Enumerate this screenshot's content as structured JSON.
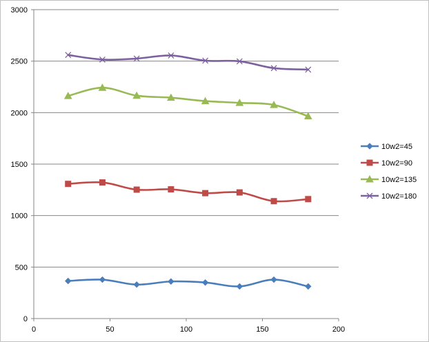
{
  "chart_data": {
    "type": "line",
    "title": "",
    "xlabel": "",
    "ylabel": "",
    "xlim": [
      0,
      200
    ],
    "ylim": [
      0,
      3000
    ],
    "x_ticks": [
      "0",
      "50",
      "100",
      "150",
      "200"
    ],
    "y_ticks": [
      "0",
      "500",
      "1000",
      "1500",
      "2000",
      "2500",
      "3000"
    ],
    "grid": "horizontal",
    "legend_position": "right",
    "x": [
      22.5,
      45,
      67.5,
      90,
      112.5,
      135,
      157.5,
      180
    ],
    "series": [
      {
        "name": "10w2=45",
        "color": "#4a7ebb",
        "marker": "diamond",
        "values": [
          365,
          378,
          330,
          360,
          350,
          312,
          378,
          312
        ]
      },
      {
        "name": "10w2=90",
        "color": "#be4b48",
        "marker": "square",
        "values": [
          1308,
          1322,
          1252,
          1255,
          1218,
          1225,
          1140,
          1160
        ]
      },
      {
        "name": "10w2=135",
        "color": "#98b954",
        "marker": "triangle",
        "values": [
          2162,
          2242,
          2165,
          2145,
          2112,
          2095,
          2075,
          1965
        ]
      },
      {
        "name": "10w2=180",
        "color": "#7d60a0",
        "marker": "x",
        "values": [
          2560,
          2515,
          2525,
          2555,
          2505,
          2498,
          2432,
          2418
        ]
      }
    ]
  }
}
